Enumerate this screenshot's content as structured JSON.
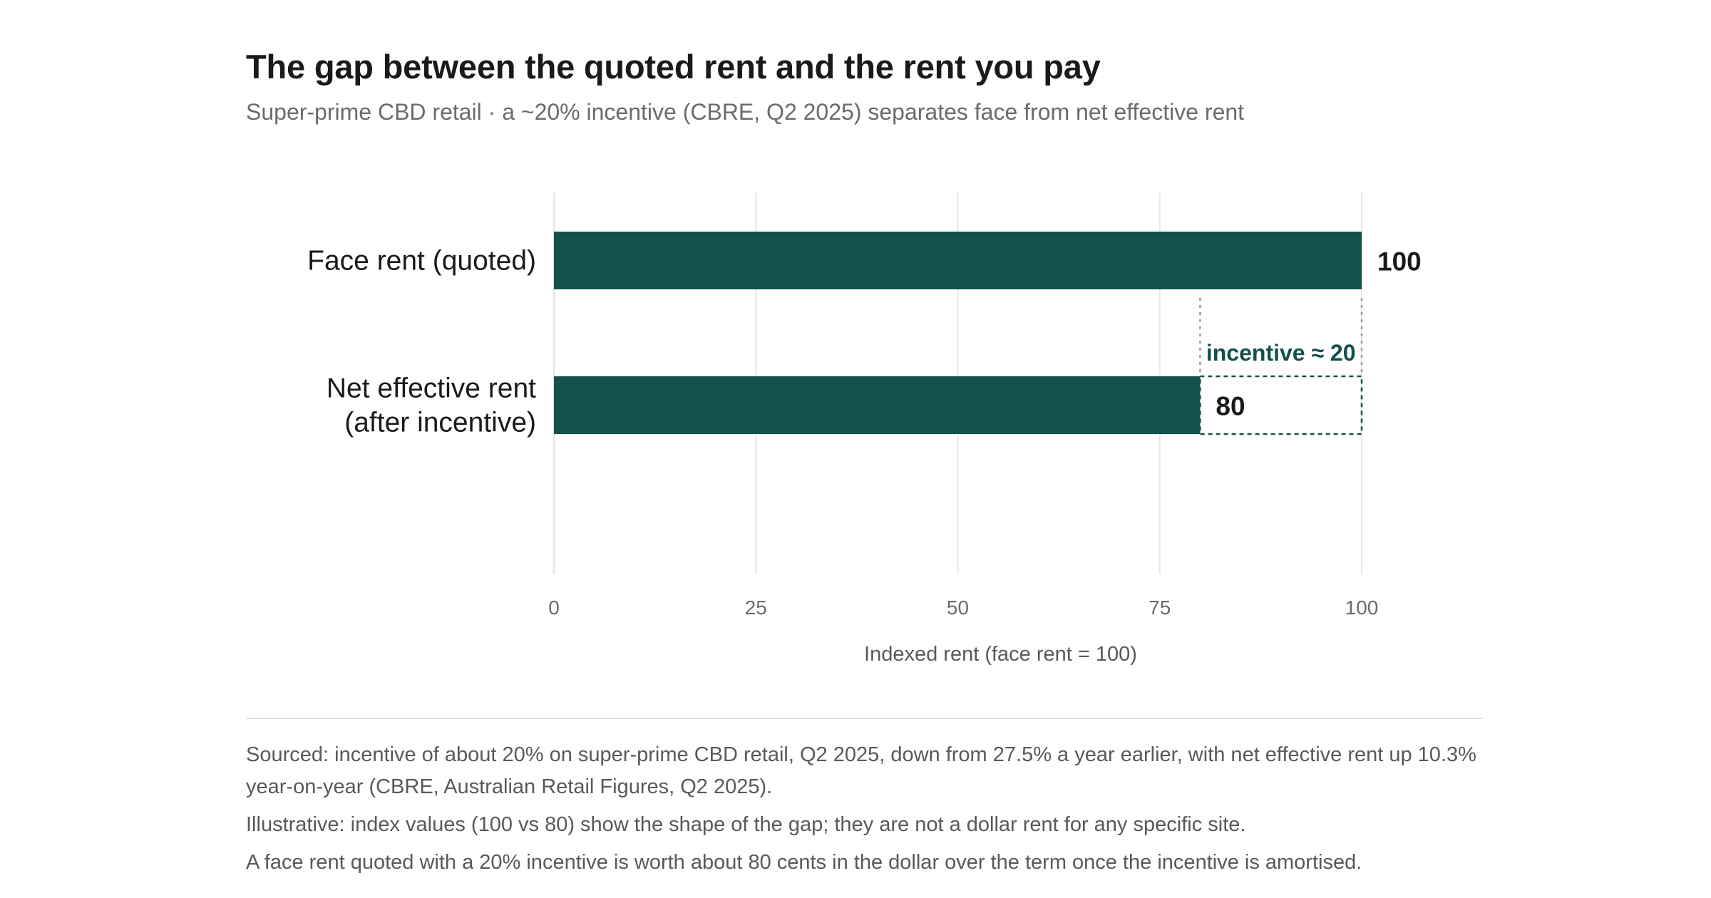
{
  "chart_data": {
    "type": "bar",
    "orientation": "horizontal",
    "title": "The gap between the quoted rent and the rent you pay",
    "subtitle": "Super-prime CBD retail · a ~20% incentive (CBRE, Q2 2025) separates face from net effective rent",
    "categories": [
      [
        "Face rent (quoted)"
      ],
      [
        "Net effective rent",
        "(after incentive)"
      ]
    ],
    "values": [
      100,
      80
    ],
    "value_labels": [
      "100",
      "80"
    ],
    "xlabel": "Indexed rent (face rent = 100)",
    "xlim": [
      0,
      100
    ],
    "xticks": [
      0,
      25,
      50,
      75,
      100
    ],
    "xtick_labels": [
      "0",
      "25",
      "50",
      "75",
      "100"
    ],
    "grid": "vertical",
    "annotation": {
      "label": "incentive ≈ 20",
      "from": 80,
      "to": 100,
      "category_index": 1
    }
  },
  "colors": {
    "bar": "#13514b",
    "grid": "#e6e6e6",
    "guide": "#9a9a9a",
    "annotation": "#13514b"
  },
  "notes": [
    "Sourced: incentive of about 20% on super-prime CBD retail, Q2 2025, down from 27.5% a year earlier, with net effective rent up 10.3% year-on-year (CBRE, Australian Retail Figures, Q2 2025).",
    "Illustrative: index values (100 vs 80) show the shape of the gap; they are not a dollar rent for any specific site.",
    "A face rent quoted with a 20% incentive is worth about 80 cents in the dollar over the term once the incentive is amortised."
  ]
}
